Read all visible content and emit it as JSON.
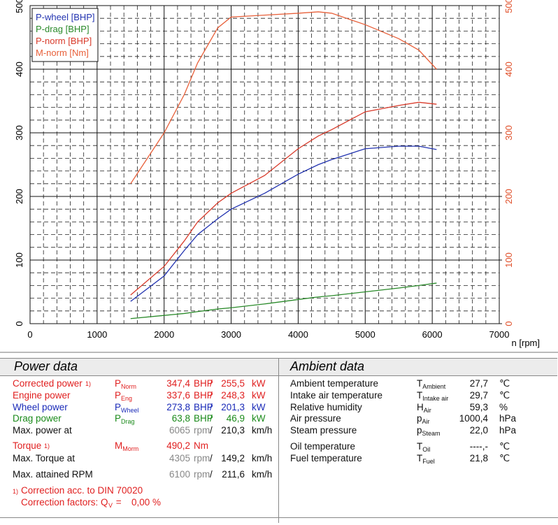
{
  "chart_data": {
    "type": "line",
    "xlabel": "n [rpm]",
    "x": [
      1500,
      2000,
      2300,
      2500,
      2800,
      3000,
      3500,
      4000,
      4300,
      4500,
      5000,
      5500,
      5800,
      6065
    ],
    "series": [
      {
        "name": "P-wheel [BHP]",
        "color": "#2233b0",
        "values": [
          35,
          75,
          115,
          140,
          165,
          180,
          205,
          235,
          250,
          258,
          275,
          279,
          279,
          273.8
        ]
      },
      {
        "name": "P-drag [BHP]",
        "color": "#2a8a2a",
        "values": [
          8,
          13,
          16,
          19,
          23,
          25,
          31,
          38,
          42,
          44,
          50,
          56,
          60,
          63.8
        ]
      },
      {
        "name": "P-norm [BHP]",
        "color": "#d83a2a",
        "values": [
          45,
          90,
          130,
          160,
          190,
          205,
          233,
          275,
          295,
          305,
          333,
          343,
          348,
          345
        ]
      },
      {
        "name": "M-norm [Nm]",
        "color": "#e8603a",
        "axis": "y2",
        "values": [
          220,
          300,
          360,
          410,
          465,
          482,
          485,
          488,
          490.2,
          488,
          470,
          448,
          430,
          400
        ]
      }
    ],
    "xlim": [
      0,
      7000
    ],
    "xticks": [
      0,
      1000,
      2000,
      3000,
      4000,
      5000,
      6000,
      7000
    ],
    "ylim": [
      0,
      500
    ],
    "yticks": [
      0,
      100,
      200,
      300,
      400,
      500
    ],
    "y2lim": [
      0,
      500
    ],
    "y2ticks": [
      0,
      100,
      200,
      300,
      400,
      500
    ],
    "y2color": "#e0502a",
    "grid": true,
    "legend": "upper left"
  },
  "power_data": {
    "title": "Power data",
    "rows": [
      {
        "label": "Corrected power",
        "note": "1)",
        "symbol": "P",
        "sub": "Norm",
        "v1": "347,4",
        "u1": "BHP",
        "sep": "/",
        "v2": "255,5",
        "u2": "kW",
        "color": "#e02020"
      },
      {
        "label": "Engine power",
        "symbol": "P",
        "sub": "Eng",
        "v1": "337,6",
        "u1": "BHP",
        "sep": "/",
        "v2": "248,3",
        "u2": "kW",
        "color": "#e02020"
      },
      {
        "label": "Wheel power",
        "symbol": "P",
        "sub": "Wheel",
        "v1": "273,8",
        "u1": "BHP",
        "sep": "/",
        "v2": "201,3",
        "u2": "kW",
        "color": "#1a2ab8"
      },
      {
        "label": "Drag power",
        "symbol": "P",
        "sub": "Drag",
        "v1": "63,8",
        "u1": "BHP",
        "sep": "/",
        "v2": "46,9",
        "u2": "kW",
        "color": "#1a8a1a"
      },
      {
        "label": "Max. power at",
        "v1": "6065",
        "u1": "rpm",
        "sep": "/",
        "v2": "210,3",
        "u2": "km/h",
        "color": "#111111"
      },
      {
        "label": "Torque",
        "note": "1)",
        "symbol": "M",
        "sub": "Morm",
        "v1": "490,2",
        "u1": "Nm",
        "color": "#e02020"
      },
      {
        "label": "Max. Torque at",
        "v1": "4305",
        "u1": "rpm",
        "sep": "/",
        "v2": "149,2",
        "u2": "km/h",
        "color": "#111111"
      },
      {
        "label": "Max. attained RPM",
        "v1": "6100",
        "u1": "rpm",
        "sep": "/",
        "v2": "211,6",
        "u2": "km/h",
        "color": "#111111"
      }
    ],
    "footnote": {
      "note": "1)",
      "text": "Correction acc. to DIN 70020",
      "factors": "Correction factors: Q",
      "sub": "V",
      "eq": " = ",
      "value": "0,00 %"
    }
  },
  "ambient_data": {
    "title": "Ambient data",
    "rows": [
      {
        "label": "Ambient temperature",
        "symbol": "T",
        "sub": "Ambient",
        "value": "27,7",
        "unit": "℃"
      },
      {
        "label": "Intake air temperature",
        "symbol": "T",
        "sub": "Intake air",
        "value": "29,7",
        "unit": "℃"
      },
      {
        "label": "Relative humidity",
        "symbol": "H",
        "sub": "Air",
        "value": "59,3",
        "unit": "%"
      },
      {
        "label": "Air pressure",
        "symbol": "p",
        "sub": "Air",
        "value": "1000,4",
        "unit": "hPa"
      },
      {
        "label": "Steam pressure",
        "symbol": "p",
        "sub": "Steam",
        "value": "22,0",
        "unit": "hPa"
      },
      {
        "label": "Oil temperature",
        "symbol": "T",
        "sub": "Oil",
        "value": "----,-",
        "unit": "℃"
      },
      {
        "label": "Fuel temperature",
        "symbol": "T",
        "sub": "Fuel",
        "value": "21,8",
        "unit": "℃"
      }
    ]
  }
}
